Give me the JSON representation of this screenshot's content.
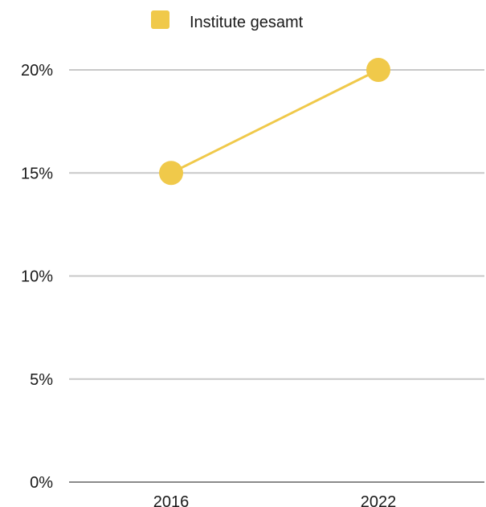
{
  "chart_data": {
    "type": "line",
    "x": [
      "2016",
      "2022"
    ],
    "series": [
      {
        "name": "Institute gesamt",
        "values": [
          15,
          20
        ]
      }
    ],
    "y_tick_labels": [
      "0%",
      "5%",
      "10%",
      "15%",
      "20%"
    ],
    "y_ticks": [
      0,
      5,
      10,
      15,
      20
    ],
    "ylim": [
      0,
      20
    ],
    "grid": true,
    "legend_position": "top",
    "colors": {
      "series": "#f0c94a",
      "grid": "#c8c8c8",
      "baseline": "#8a8a8a",
      "text": "#1a1a1a"
    }
  }
}
